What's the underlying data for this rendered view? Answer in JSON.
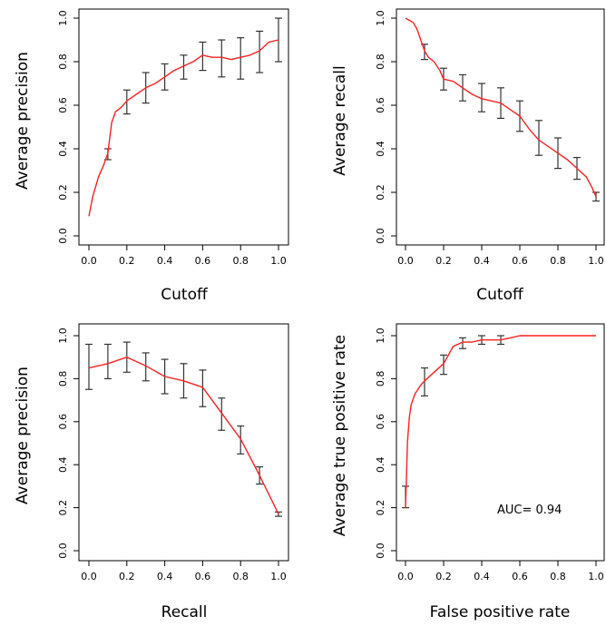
{
  "colors": {
    "curve": "#ff2020",
    "axis": "#000000",
    "errorbar": "#333333"
  },
  "chart_data": [
    {
      "type": "line",
      "xlabel": "Cutoff",
      "ylabel": "Average precision",
      "xlim": [
        0,
        1
      ],
      "ylim": [
        0,
        1
      ],
      "xticks": [
        "0.0",
        "0.2",
        "0.4",
        "0.6",
        "0.8",
        "1.0"
      ],
      "yticks": [
        "0.0",
        "0.2",
        "0.4",
        "0.6",
        "0.8",
        "1.0"
      ],
      "grid": false,
      "line": {
        "x": [
          0.0,
          0.02,
          0.05,
          0.08,
          0.1,
          0.12,
          0.14,
          0.17,
          0.2,
          0.25,
          0.3,
          0.35,
          0.4,
          0.45,
          0.5,
          0.55,
          0.6,
          0.65,
          0.7,
          0.75,
          0.8,
          0.85,
          0.9,
          0.95,
          1.0
        ],
        "y": [
          0.09,
          0.18,
          0.27,
          0.33,
          0.38,
          0.52,
          0.57,
          0.59,
          0.62,
          0.65,
          0.68,
          0.7,
          0.73,
          0.76,
          0.78,
          0.8,
          0.83,
          0.82,
          0.82,
          0.81,
          0.82,
          0.83,
          0.85,
          0.89,
          0.9
        ]
      },
      "errorbars": {
        "x": [
          0.1,
          0.2,
          0.3,
          0.4,
          0.5,
          0.6,
          0.7,
          0.8,
          0.9,
          1.0
        ],
        "y": [
          0.38,
          0.62,
          0.68,
          0.73,
          0.78,
          0.83,
          0.82,
          0.82,
          0.85,
          0.9
        ],
        "low": [
          0.35,
          0.56,
          0.61,
          0.67,
          0.72,
          0.76,
          0.73,
          0.72,
          0.75,
          0.8
        ],
        "high": [
          0.4,
          0.67,
          0.75,
          0.79,
          0.83,
          0.89,
          0.9,
          0.91,
          0.94,
          1.0
        ]
      }
    },
    {
      "type": "line",
      "xlabel": "Cutoff",
      "ylabel": "Average recall",
      "xlim": [
        0,
        1
      ],
      "ylim": [
        0,
        1
      ],
      "xticks": [
        "0.0",
        "0.2",
        "0.4",
        "0.6",
        "0.8",
        "1.0"
      ],
      "yticks": [
        "0.0",
        "0.2",
        "0.4",
        "0.6",
        "0.8",
        "1.0"
      ],
      "grid": false,
      "line": {
        "x": [
          0.0,
          0.02,
          0.04,
          0.06,
          0.08,
          0.1,
          0.12,
          0.15,
          0.18,
          0.2,
          0.25,
          0.3,
          0.35,
          0.4,
          0.45,
          0.5,
          0.55,
          0.6,
          0.65,
          0.7,
          0.75,
          0.8,
          0.85,
          0.9,
          0.95,
          0.98,
          1.0
        ],
        "y": [
          1.0,
          0.99,
          0.98,
          0.95,
          0.9,
          0.85,
          0.82,
          0.8,
          0.76,
          0.72,
          0.71,
          0.68,
          0.65,
          0.63,
          0.62,
          0.61,
          0.58,
          0.55,
          0.49,
          0.44,
          0.41,
          0.38,
          0.35,
          0.31,
          0.27,
          0.22,
          0.18
        ]
      },
      "errorbars": {
        "x": [
          0.1,
          0.2,
          0.3,
          0.4,
          0.5,
          0.6,
          0.7,
          0.8,
          0.9,
          1.0
        ],
        "y": [
          0.85,
          0.72,
          0.68,
          0.64,
          0.61,
          0.55,
          0.44,
          0.38,
          0.31,
          0.18
        ],
        "low": [
          0.81,
          0.67,
          0.62,
          0.57,
          0.54,
          0.48,
          0.37,
          0.31,
          0.26,
          0.16
        ],
        "high": [
          0.88,
          0.77,
          0.74,
          0.7,
          0.68,
          0.62,
          0.53,
          0.45,
          0.36,
          0.2
        ]
      }
    },
    {
      "type": "line",
      "xlabel": "Recall",
      "ylabel": "Average precision",
      "xlim": [
        0,
        1
      ],
      "ylim": [
        0,
        1
      ],
      "xticks": [
        "0.0",
        "0.2",
        "0.4",
        "0.6",
        "0.8",
        "1.0"
      ],
      "yticks": [
        "0.0",
        "0.2",
        "0.4",
        "0.6",
        "0.8",
        "1.0"
      ],
      "grid": false,
      "line": {
        "x": [
          0.0,
          0.1,
          0.2,
          0.3,
          0.4,
          0.5,
          0.6,
          0.7,
          0.8,
          0.9,
          1.0
        ],
        "y": [
          0.85,
          0.87,
          0.9,
          0.86,
          0.81,
          0.79,
          0.76,
          0.64,
          0.52,
          0.35,
          0.17
        ]
      },
      "errorbars": {
        "x": [
          0.0,
          0.1,
          0.2,
          0.3,
          0.4,
          0.5,
          0.6,
          0.7,
          0.8,
          0.9,
          1.0
        ],
        "y": [
          0.85,
          0.87,
          0.9,
          0.86,
          0.81,
          0.79,
          0.76,
          0.64,
          0.52,
          0.35,
          0.17
        ],
        "low": [
          0.75,
          0.8,
          0.83,
          0.79,
          0.73,
          0.71,
          0.67,
          0.56,
          0.45,
          0.31,
          0.16
        ],
        "high": [
          0.96,
          0.96,
          0.97,
          0.92,
          0.89,
          0.87,
          0.84,
          0.71,
          0.58,
          0.39,
          0.18
        ]
      }
    },
    {
      "type": "line",
      "xlabel": "False positive rate",
      "ylabel": "Average true positive rate",
      "xlim": [
        0,
        1
      ],
      "ylim": [
        0,
        1
      ],
      "xticks": [
        "0.0",
        "0.2",
        "0.4",
        "0.6",
        "0.8",
        "1.0"
      ],
      "yticks": [
        "0.0",
        "0.2",
        "0.4",
        "0.6",
        "0.8",
        "1.0"
      ],
      "grid": false,
      "annotation": "AUC= 0.94",
      "line": {
        "x": [
          0.0,
          0.005,
          0.01,
          0.02,
          0.03,
          0.05,
          0.08,
          0.1,
          0.15,
          0.2,
          0.25,
          0.3,
          0.35,
          0.4,
          0.5,
          0.55,
          0.6,
          0.8,
          1.0
        ],
        "y": [
          0.2,
          0.35,
          0.5,
          0.62,
          0.68,
          0.73,
          0.77,
          0.79,
          0.83,
          0.87,
          0.95,
          0.97,
          0.97,
          0.98,
          0.98,
          0.99,
          1.0,
          1.0,
          1.0
        ]
      },
      "errorbars": {
        "x": [
          0.0,
          0.1,
          0.2,
          0.3,
          0.4,
          0.5
        ],
        "y": [
          0.25,
          0.79,
          0.87,
          0.97,
          0.98,
          0.98
        ],
        "low": [
          0.2,
          0.72,
          0.82,
          0.94,
          0.96,
          0.96
        ],
        "high": [
          0.3,
          0.85,
          0.91,
          0.99,
          1.0,
          1.0
        ]
      }
    }
  ]
}
